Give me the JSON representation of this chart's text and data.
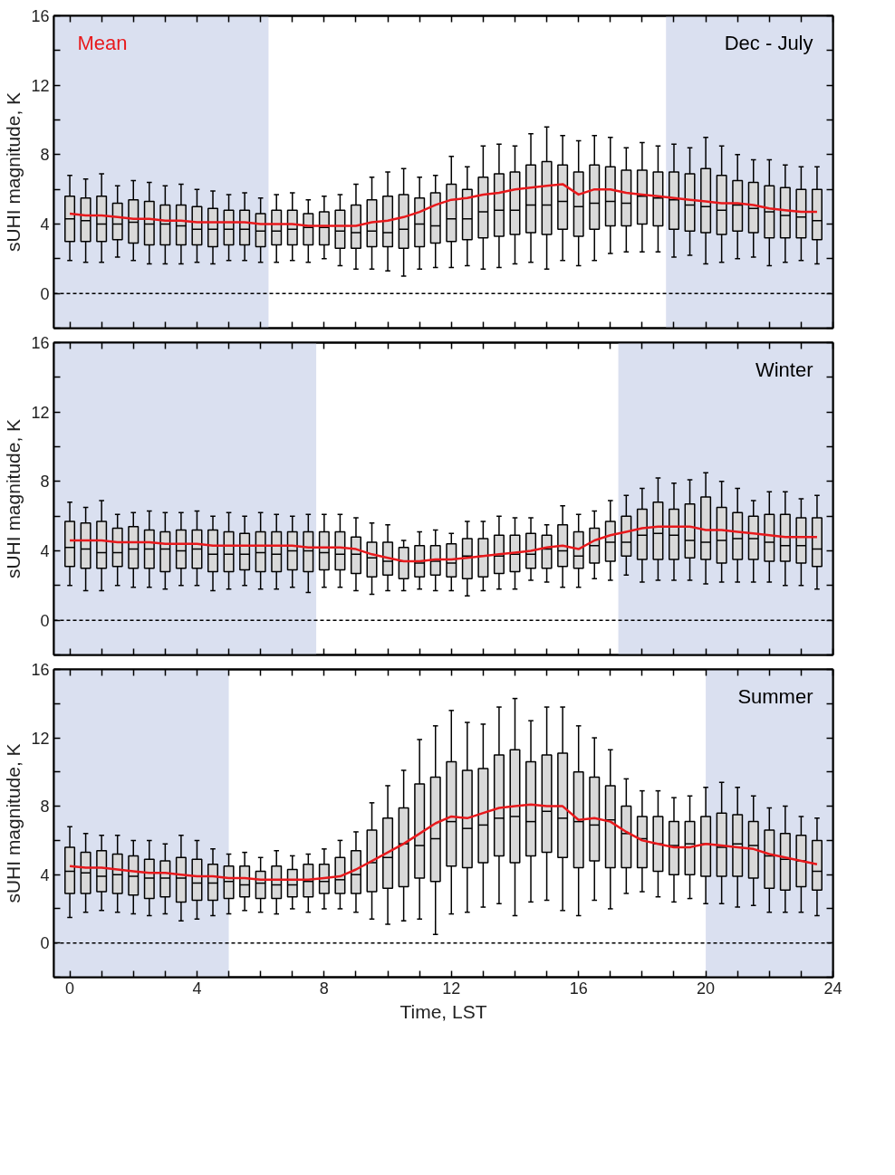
{
  "chart_data": [
    {
      "type": "box",
      "x": [
        0,
        0.5,
        1,
        1.5,
        2,
        2.5,
        3,
        3.5,
        4,
        4.5,
        5,
        5.5,
        6,
        6.5,
        7,
        7.5,
        8,
        8.5,
        9,
        9.5,
        10,
        10.5,
        11,
        11.5,
        12,
        12.5,
        13,
        13.5,
        14,
        14.5,
        15,
        15.5,
        16,
        16.5,
        17,
        17.5,
        18,
        18.5,
        19,
        19.5,
        20,
        20.5,
        21,
        21.5,
        22,
        22.5,
        23,
        23.5
      ],
      "ylabel": "sUHI magnitude, K",
      "annotations": [
        "Dec - July"
      ],
      "legend": "top left",
      "grid": false,
      "tick_labels": "y",
      "xlim": [
        -0.5,
        24
      ],
      "ylim": [
        -2,
        16
      ],
      "xticks": [
        0,
        {
          "value": 1,
          "label": null
        },
        {
          "value": 2,
          "label": null
        },
        {
          "value": 3,
          "label": null
        },
        4,
        {
          "value": 5,
          "label": null
        },
        {
          "value": 6,
          "label": null
        },
        {
          "value": 7,
          "label": null
        },
        8,
        {
          "value": 9,
          "label": null
        },
        {
          "value": 10,
          "label": null
        },
        {
          "value": 11,
          "label": null
        },
        12,
        {
          "value": 13,
          "label": null
        },
        {
          "value": 14,
          "label": null
        },
        {
          "value": 15,
          "label": null
        },
        16,
        {
          "value": 17,
          "label": null
        },
        {
          "value": 18,
          "label": null
        },
        {
          "value": 19,
          "label": null
        },
        20,
        {
          "value": 21,
          "label": null
        },
        {
          "value": 22,
          "label": null
        },
        {
          "value": 23,
          "label": null
        },
        24
      ],
      "yticks": [
        {
          "value": -2,
          "label": null
        },
        0,
        {
          "value": 2,
          "label": null
        },
        4,
        {
          "value": 6,
          "label": null
        },
        8,
        {
          "value": 10,
          "label": null
        },
        12,
        {
          "value": 14,
          "label": null
        },
        16
      ],
      "bands": [
        {
          "axis": "x",
          "from": -0.5,
          "to": 6.25,
          "color": "#dae0f0"
        },
        {
          "axis": "x",
          "from": 18.75,
          "to": 24,
          "color": "#dae0f0"
        }
      ],
      "ref_lines": [
        {
          "axis": "y",
          "value": 0,
          "color": "#000000",
          "line_style": "dashed"
        }
      ],
      "series": [
        {
          "type": "box",
          "color": "#d9d9d9",
          "boxes": [
            {
              "low": 1.9,
              "q1": 3.0,
              "median": 4.3,
              "q3": 5.6,
              "high": 6.8
            },
            {
              "low": 1.8,
              "q1": 3.0,
              "median": 4.2,
              "q3": 5.5,
              "high": 6.6
            },
            {
              "low": 1.8,
              "q1": 3.0,
              "median": 4.0,
              "q3": 5.6,
              "high": 6.9
            },
            {
              "low": 2.1,
              "q1": 3.1,
              "median": 4.0,
              "q3": 5.2,
              "high": 6.2
            },
            {
              "low": 1.9,
              "q1": 2.9,
              "median": 4.1,
              "q3": 5.4,
              "high": 6.5
            },
            {
              "low": 1.7,
              "q1": 2.8,
              "median": 4.0,
              "q3": 5.3,
              "high": 6.4
            },
            {
              "low": 1.7,
              "q1": 2.8,
              "median": 4.0,
              "q3": 5.1,
              "high": 6.2
            },
            {
              "low": 1.7,
              "q1": 2.8,
              "median": 3.9,
              "q3": 5.1,
              "high": 6.3
            },
            {
              "low": 1.8,
              "q1": 2.8,
              "median": 3.7,
              "q3": 5.0,
              "high": 6.0
            },
            {
              "low": 1.7,
              "q1": 2.7,
              "median": 3.7,
              "q3": 4.9,
              "high": 5.9
            },
            {
              "low": 1.9,
              "q1": 2.8,
              "median": 3.7,
              "q3": 4.8,
              "high": 5.7
            },
            {
              "low": 1.9,
              "q1": 2.8,
              "median": 3.7,
              "q3": 4.8,
              "high": 5.8
            },
            {
              "low": 1.8,
              "q1": 2.7,
              "median": 3.6,
              "q3": 4.6,
              "high": 5.5
            },
            {
              "low": 1.8,
              "q1": 2.8,
              "median": 3.6,
              "q3": 4.8,
              "high": 5.7
            },
            {
              "low": 1.9,
              "q1": 2.8,
              "median": 3.7,
              "q3": 4.8,
              "high": 5.8
            },
            {
              "low": 1.8,
              "q1": 2.8,
              "median": 3.8,
              "q3": 4.6,
              "high": 5.4
            },
            {
              "low": 2.0,
              "q1": 2.8,
              "median": 3.8,
              "q3": 4.7,
              "high": 5.6
            },
            {
              "low": 1.6,
              "q1": 2.6,
              "median": 3.6,
              "q3": 4.8,
              "high": 5.7
            },
            {
              "low": 1.4,
              "q1": 2.6,
              "median": 3.5,
              "q3": 5.1,
              "high": 6.3
            },
            {
              "low": 1.4,
              "q1": 2.7,
              "median": 3.6,
              "q3": 5.4,
              "high": 6.7
            },
            {
              "low": 1.3,
              "q1": 2.7,
              "median": 3.5,
              "q3": 5.6,
              "high": 7.0
            },
            {
              "low": 1.0,
              "q1": 2.6,
              "median": 3.7,
              "q3": 5.7,
              "high": 7.2
            },
            {
              "low": 1.4,
              "q1": 2.7,
              "median": 4.0,
              "q3": 5.5,
              "high": 6.7
            },
            {
              "low": 1.5,
              "q1": 2.9,
              "median": 3.9,
              "q3": 5.8,
              "high": 6.8
            },
            {
              "low": 1.5,
              "q1": 3.0,
              "median": 4.3,
              "q3": 6.3,
              "high": 7.9
            },
            {
              "low": 1.6,
              "q1": 3.1,
              "median": 4.3,
              "q3": 6.0,
              "high": 7.3
            },
            {
              "low": 1.4,
              "q1": 3.2,
              "median": 4.7,
              "q3": 6.7,
              "high": 8.5
            },
            {
              "low": 1.5,
              "q1": 3.3,
              "median": 4.8,
              "q3": 6.9,
              "high": 8.6
            },
            {
              "low": 1.7,
              "q1": 3.4,
              "median": 4.8,
              "q3": 7.0,
              "high": 8.5
            },
            {
              "low": 1.8,
              "q1": 3.5,
              "median": 5.1,
              "q3": 7.4,
              "high": 9.2
            },
            {
              "low": 1.4,
              "q1": 3.4,
              "median": 5.1,
              "q3": 7.6,
              "high": 9.6
            },
            {
              "low": 1.9,
              "q1": 3.7,
              "median": 5.3,
              "q3": 7.4,
              "high": 9.1
            },
            {
              "low": 1.6,
              "q1": 3.3,
              "median": 5.0,
              "q3": 7.0,
              "high": 8.8
            },
            {
              "low": 1.9,
              "q1": 3.7,
              "median": 5.2,
              "q3": 7.4,
              "high": 9.1
            },
            {
              "low": 2.3,
              "q1": 3.9,
              "median": 5.3,
              "q3": 7.3,
              "high": 9.0
            },
            {
              "low": 2.4,
              "q1": 3.9,
              "median": 5.2,
              "q3": 7.1,
              "high": 8.4
            },
            {
              "low": 2.4,
              "q1": 4.0,
              "median": 5.6,
              "q3": 7.1,
              "high": 8.7
            },
            {
              "low": 2.4,
              "q1": 3.9,
              "median": 5.5,
              "q3": 7.0,
              "high": 8.5
            },
            {
              "low": 2.1,
              "q1": 3.7,
              "median": 5.4,
              "q3": 7.0,
              "high": 8.6
            },
            {
              "low": 2.2,
              "q1": 3.6,
              "median": 5.1,
              "q3": 6.9,
              "high": 8.4
            },
            {
              "low": 1.7,
              "q1": 3.5,
              "median": 5.0,
              "q3": 7.2,
              "high": 9.0
            },
            {
              "low": 1.8,
              "q1": 3.4,
              "median": 4.8,
              "q3": 6.8,
              "high": 8.5
            },
            {
              "low": 2.0,
              "q1": 3.6,
              "median": 5.1,
              "q3": 6.5,
              "high": 8.0
            },
            {
              "low": 2.1,
              "q1": 3.5,
              "median": 4.9,
              "q3": 6.4,
              "high": 7.7
            },
            {
              "low": 1.6,
              "q1": 3.2,
              "median": 4.7,
              "q3": 6.2,
              "high": 7.7
            },
            {
              "low": 1.8,
              "q1": 3.2,
              "median": 4.5,
              "q3": 6.1,
              "high": 7.4
            },
            {
              "low": 1.9,
              "q1": 3.2,
              "median": 4.4,
              "q3": 6.0,
              "high": 7.3
            },
            {
              "low": 1.7,
              "q1": 3.1,
              "median": 4.2,
              "q3": 6.0,
              "high": 7.3
            }
          ]
        },
        {
          "type": "line",
          "name": "Mean",
          "color": "#e8191c",
          "values": [
            4.6,
            4.5,
            4.5,
            4.4,
            4.3,
            4.3,
            4.2,
            4.2,
            4.1,
            4.1,
            4.1,
            4.1,
            4.0,
            4.0,
            4.0,
            3.9,
            3.9,
            3.9,
            3.9,
            4.1,
            4.2,
            4.4,
            4.7,
            5.1,
            5.4,
            5.5,
            5.7,
            5.8,
            6.0,
            6.1,
            6.2,
            6.3,
            5.7,
            6.0,
            6.0,
            5.8,
            5.7,
            5.6,
            5.5,
            5.4,
            5.3,
            5.2,
            5.2,
            5.1,
            4.9,
            4.8,
            4.7,
            4.7
          ]
        }
      ]
    },
    {
      "type": "box",
      "x": [
        0,
        0.5,
        1,
        1.5,
        2,
        2.5,
        3,
        3.5,
        4,
        4.5,
        5,
        5.5,
        6,
        6.5,
        7,
        7.5,
        8,
        8.5,
        9,
        9.5,
        10,
        10.5,
        11,
        11.5,
        12,
        12.5,
        13,
        13.5,
        14,
        14.5,
        15,
        15.5,
        16,
        16.5,
        17,
        17.5,
        18,
        18.5,
        19,
        19.5,
        20,
        20.5,
        21,
        21.5,
        22,
        22.5,
        23,
        23.5
      ],
      "ylabel": "sUHI magnitude, K",
      "annotations": [
        "Winter"
      ],
      "grid": false,
      "tick_labels": "y",
      "xlim": [
        -0.5,
        24
      ],
      "ylim": [
        -2,
        16
      ],
      "xticks": [
        0,
        {
          "value": 1,
          "label": null
        },
        {
          "value": 2,
          "label": null
        },
        {
          "value": 3,
          "label": null
        },
        4,
        {
          "value": 5,
          "label": null
        },
        {
          "value": 6,
          "label": null
        },
        {
          "value": 7,
          "label": null
        },
        8,
        {
          "value": 9,
          "label": null
        },
        {
          "value": 10,
          "label": null
        },
        {
          "value": 11,
          "label": null
        },
        12,
        {
          "value": 13,
          "label": null
        },
        {
          "value": 14,
          "label": null
        },
        {
          "value": 15,
          "label": null
        },
        16,
        {
          "value": 17,
          "label": null
        },
        {
          "value": 18,
          "label": null
        },
        {
          "value": 19,
          "label": null
        },
        20,
        {
          "value": 21,
          "label": null
        },
        {
          "value": 22,
          "label": null
        },
        {
          "value": 23,
          "label": null
        },
        24
      ],
      "yticks": [
        {
          "value": -2,
          "label": null
        },
        0,
        {
          "value": 2,
          "label": null
        },
        4,
        {
          "value": 6,
          "label": null
        },
        8,
        {
          "value": 10,
          "label": null
        },
        12,
        {
          "value": 14,
          "label": null
        },
        16
      ],
      "bands": [
        {
          "axis": "x",
          "from": -0.5,
          "to": 7.75,
          "color": "#dae0f0"
        },
        {
          "axis": "x",
          "from": 17.25,
          "to": 24,
          "color": "#dae0f0"
        }
      ],
      "ref_lines": [
        {
          "axis": "y",
          "value": 0,
          "color": "#000000",
          "line_style": "dashed"
        }
      ],
      "series": [
        {
          "type": "box",
          "color": "#d9d9d9",
          "boxes": [
            {
              "low": 2.0,
              "q1": 3.1,
              "median": 4.2,
              "q3": 5.7,
              "high": 6.8
            },
            {
              "low": 1.7,
              "q1": 3.0,
              "median": 4.1,
              "q3": 5.6,
              "high": 6.5
            },
            {
              "low": 1.7,
              "q1": 3.0,
              "median": 3.9,
              "q3": 5.7,
              "high": 6.9
            },
            {
              "low": 2.0,
              "q1": 3.1,
              "median": 3.9,
              "q3": 5.3,
              "high": 6.1
            },
            {
              "low": 1.9,
              "q1": 3.0,
              "median": 4.1,
              "q3": 5.4,
              "high": 6.2
            },
            {
              "low": 1.9,
              "q1": 3.0,
              "median": 4.1,
              "q3": 5.2,
              "high": 6.3
            },
            {
              "low": 1.8,
              "q1": 2.8,
              "median": 4.1,
              "q3": 5.1,
              "high": 6.2
            },
            {
              "low": 2.0,
              "q1": 3.0,
              "median": 4.0,
              "q3": 5.2,
              "high": 6.2
            },
            {
              "low": 2.0,
              "q1": 3.0,
              "median": 4.1,
              "q3": 5.2,
              "high": 6.3
            },
            {
              "low": 1.7,
              "q1": 2.8,
              "median": 3.8,
              "q3": 5.2,
              "high": 6.0
            },
            {
              "low": 1.8,
              "q1": 2.8,
              "median": 3.8,
              "q3": 5.1,
              "high": 6.2
            },
            {
              "low": 2.0,
              "q1": 2.9,
              "median": 3.8,
              "q3": 5.0,
              "high": 6.0
            },
            {
              "low": 1.8,
              "q1": 2.8,
              "median": 3.9,
              "q3": 5.1,
              "high": 6.2
            },
            {
              "low": 1.8,
              "q1": 2.8,
              "median": 3.8,
              "q3": 5.1,
              "high": 6.1
            },
            {
              "low": 1.9,
              "q1": 2.9,
              "median": 4.0,
              "q3": 5.1,
              "high": 6.0
            },
            {
              "low": 1.6,
              "q1": 2.8,
              "median": 4.0,
              "q3": 5.1,
              "high": 6.1
            },
            {
              "low": 1.9,
              "q1": 2.9,
              "median": 3.9,
              "q3": 5.1,
              "high": 6.1
            },
            {
              "low": 1.9,
              "q1": 2.9,
              "median": 3.8,
              "q3": 5.1,
              "high": 6.1
            },
            {
              "low": 1.7,
              "q1": 2.7,
              "median": 3.8,
              "q3": 4.8,
              "high": 5.9
            },
            {
              "low": 1.5,
              "q1": 2.5,
              "median": 3.6,
              "q3": 4.5,
              "high": 5.6
            },
            {
              "low": 1.7,
              "q1": 2.6,
              "median": 3.4,
              "q3": 4.5,
              "high": 5.5
            },
            {
              "low": 1.7,
              "q1": 2.4,
              "median": 3.4,
              "q3": 4.2,
              "high": 4.6
            },
            {
              "low": 1.8,
              "q1": 2.5,
              "median": 3.3,
              "q3": 4.3,
              "high": 5.1
            },
            {
              "low": 1.7,
              "q1": 2.6,
              "median": 3.4,
              "q3": 4.3,
              "high": 5.2
            },
            {
              "low": 1.7,
              "q1": 2.5,
              "median": 3.3,
              "q3": 4.4,
              "high": 5.0
            },
            {
              "low": 1.4,
              "q1": 2.4,
              "median": 3.7,
              "q3": 4.7,
              "high": 5.7
            },
            {
              "low": 1.7,
              "q1": 2.5,
              "median": 3.7,
              "q3": 4.7,
              "high": 5.7
            },
            {
              "low": 1.8,
              "q1": 2.7,
              "median": 3.7,
              "q3": 4.9,
              "high": 6.0
            },
            {
              "low": 1.8,
              "q1": 2.8,
              "median": 3.8,
              "q3": 4.9,
              "high": 5.9
            },
            {
              "low": 2.3,
              "q1": 3.0,
              "median": 3.8,
              "q3": 5.0,
              "high": 5.9
            },
            {
              "low": 2.2,
              "q1": 3.0,
              "median": 4.1,
              "q3": 4.9,
              "high": 5.5
            },
            {
              "low": 1.9,
              "q1": 3.1,
              "median": 4.0,
              "q3": 5.5,
              "high": 6.6
            },
            {
              "low": 1.9,
              "q1": 3.0,
              "median": 3.7,
              "q3": 5.1,
              "high": 6.1
            },
            {
              "low": 2.4,
              "q1": 3.3,
              "median": 4.3,
              "q3": 5.3,
              "high": 6.3
            },
            {
              "low": 2.3,
              "q1": 3.4,
              "median": 4.5,
              "q3": 5.7,
              "high": 6.9
            },
            {
              "low": 2.6,
              "q1": 3.7,
              "median": 4.5,
              "q3": 6.0,
              "high": 7.2
            },
            {
              "low": 2.2,
              "q1": 3.5,
              "median": 4.9,
              "q3": 6.4,
              "high": 7.6
            },
            {
              "low": 2.3,
              "q1": 3.5,
              "median": 5.0,
              "q3": 6.8,
              "high": 8.2
            },
            {
              "low": 2.3,
              "q1": 3.5,
              "median": 4.9,
              "q3": 6.4,
              "high": 7.9
            },
            {
              "low": 2.3,
              "q1": 3.6,
              "median": 4.6,
              "q3": 6.7,
              "high": 8.1
            },
            {
              "low": 2.1,
              "q1": 3.5,
              "median": 4.5,
              "q3": 7.1,
              "high": 8.5
            },
            {
              "low": 2.2,
              "q1": 3.3,
              "median": 4.6,
              "q3": 6.5,
              "high": 8.0
            },
            {
              "low": 2.2,
              "q1": 3.5,
              "median": 4.7,
              "q3": 6.2,
              "high": 7.6
            },
            {
              "low": 2.2,
              "q1": 3.5,
              "median": 4.7,
              "q3": 6.0,
              "high": 6.9
            },
            {
              "low": 2.2,
              "q1": 3.4,
              "median": 4.5,
              "q3": 6.1,
              "high": 7.4
            },
            {
              "low": 2.0,
              "q1": 3.4,
              "median": 4.3,
              "q3": 6.1,
              "high": 7.4
            },
            {
              "low": 2.0,
              "q1": 3.3,
              "median": 4.3,
              "q3": 5.9,
              "high": 7.0
            },
            {
              "low": 1.8,
              "q1": 3.1,
              "median": 4.1,
              "q3": 5.9,
              "high": 7.2
            }
          ]
        },
        {
          "type": "line",
          "color": "#e8191c",
          "values": [
            4.6,
            4.6,
            4.6,
            4.5,
            4.5,
            4.5,
            4.4,
            4.4,
            4.4,
            4.3,
            4.3,
            4.3,
            4.3,
            4.3,
            4.3,
            4.2,
            4.2,
            4.2,
            4.1,
            3.8,
            3.6,
            3.4,
            3.4,
            3.5,
            3.5,
            3.6,
            3.7,
            3.8,
            3.9,
            4.0,
            4.2,
            4.3,
            4.1,
            4.6,
            4.9,
            5.1,
            5.3,
            5.4,
            5.4,
            5.4,
            5.2,
            5.2,
            5.1,
            5.0,
            4.9,
            4.8,
            4.8,
            4.8
          ]
        }
      ]
    },
    {
      "type": "box",
      "x": [
        0,
        0.5,
        1,
        1.5,
        2,
        2.5,
        3,
        3.5,
        4,
        4.5,
        5,
        5.5,
        6,
        6.5,
        7,
        7.5,
        8,
        8.5,
        9,
        9.5,
        10,
        10.5,
        11,
        11.5,
        12,
        12.5,
        13,
        13.5,
        14,
        14.5,
        15,
        15.5,
        16,
        16.5,
        17,
        17.5,
        18,
        18.5,
        19,
        19.5,
        20,
        20.5,
        21,
        21.5,
        22,
        22.5,
        23,
        23.5
      ],
      "xlabel": "Time, LST",
      "ylabel": "sUHI magnitude, K",
      "annotations": [
        "Summer"
      ],
      "grid": false,
      "xlim": [
        -0.5,
        24
      ],
      "ylim": [
        -2,
        16
      ],
      "xticks": [
        0,
        {
          "value": 1,
          "label": null
        },
        {
          "value": 2,
          "label": null
        },
        {
          "value": 3,
          "label": null
        },
        4,
        {
          "value": 5,
          "label": null
        },
        {
          "value": 6,
          "label": null
        },
        {
          "value": 7,
          "label": null
        },
        8,
        {
          "value": 9,
          "label": null
        },
        {
          "value": 10,
          "label": null
        },
        {
          "value": 11,
          "label": null
        },
        12,
        {
          "value": 13,
          "label": null
        },
        {
          "value": 14,
          "label": null
        },
        {
          "value": 15,
          "label": null
        },
        16,
        {
          "value": 17,
          "label": null
        },
        {
          "value": 18,
          "label": null
        },
        {
          "value": 19,
          "label": null
        },
        20,
        {
          "value": 21,
          "label": null
        },
        {
          "value": 22,
          "label": null
        },
        {
          "value": 23,
          "label": null
        },
        24
      ],
      "yticks": [
        {
          "value": -2,
          "label": null
        },
        0,
        {
          "value": 2,
          "label": null
        },
        4,
        {
          "value": 6,
          "label": null
        },
        8,
        {
          "value": 10,
          "label": null
        },
        12,
        {
          "value": 14,
          "label": null
        },
        16
      ],
      "bands": [
        {
          "axis": "x",
          "from": -0.5,
          "to": 5,
          "color": "#dae0f0"
        },
        {
          "axis": "x",
          "from": 20,
          "to": 24,
          "color": "#dae0f0"
        }
      ],
      "ref_lines": [
        {
          "axis": "y",
          "value": 0,
          "color": "#000000",
          "line_style": "dashed"
        }
      ],
      "series": [
        {
          "type": "box",
          "color": "#d9d9d9",
          "boxes": [
            {
              "low": 1.5,
              "q1": 2.9,
              "median": 4.2,
              "q3": 5.6,
              "high": 6.8
            },
            {
              "low": 1.8,
              "q1": 2.9,
              "median": 4.1,
              "q3": 5.3,
              "high": 6.4
            },
            {
              "low": 1.9,
              "q1": 3.0,
              "median": 3.9,
              "q3": 5.4,
              "high": 6.3
            },
            {
              "low": 1.8,
              "q1": 2.9,
              "median": 4.0,
              "q3": 5.2,
              "high": 6.3
            },
            {
              "low": 1.7,
              "q1": 2.8,
              "median": 3.9,
              "q3": 5.1,
              "high": 6.0
            },
            {
              "low": 1.6,
              "q1": 2.6,
              "median": 3.8,
              "q3": 4.9,
              "high": 6.0
            },
            {
              "low": 1.7,
              "q1": 2.7,
              "median": 3.8,
              "q3": 4.8,
              "high": 5.8
            },
            {
              "low": 1.3,
              "q1": 2.4,
              "median": 3.8,
              "q3": 5.0,
              "high": 6.3
            },
            {
              "low": 1.4,
              "q1": 2.5,
              "median": 3.5,
              "q3": 4.9,
              "high": 6.0
            },
            {
              "low": 1.6,
              "q1": 2.5,
              "median": 3.5,
              "q3": 4.6,
              "high": 5.5
            },
            {
              "low": 1.7,
              "q1": 2.6,
              "median": 3.6,
              "q3": 4.5,
              "high": 5.2
            },
            {
              "low": 1.9,
              "q1": 2.7,
              "median": 3.4,
              "q3": 4.5,
              "high": 5.3
            },
            {
              "low": 1.8,
              "q1": 2.6,
              "median": 3.5,
              "q3": 4.2,
              "high": 5.0
            },
            {
              "low": 1.7,
              "q1": 2.6,
              "median": 3.4,
              "q3": 4.5,
              "high": 5.4
            },
            {
              "low": 2.0,
              "q1": 2.7,
              "median": 3.4,
              "q3": 4.3,
              "high": 5.1
            },
            {
              "low": 1.8,
              "q1": 2.7,
              "median": 3.6,
              "q3": 4.6,
              "high": 5.2
            },
            {
              "low": 2.0,
              "q1": 2.9,
              "median": 3.6,
              "q3": 4.6,
              "high": 5.5
            },
            {
              "low": 2.0,
              "q1": 2.9,
              "median": 3.7,
              "q3": 5.0,
              "high": 6.0
            },
            {
              "low": 1.8,
              "q1": 2.9,
              "median": 4.0,
              "q3": 5.4,
              "high": 6.5
            },
            {
              "low": 1.4,
              "q1": 3.0,
              "median": 4.7,
              "q3": 6.6,
              "high": 8.2
            },
            {
              "low": 1.1,
              "q1": 3.2,
              "median": 5.0,
              "q3": 7.3,
              "high": 9.2
            },
            {
              "low": 1.3,
              "q1": 3.3,
              "median": 5.8,
              "q3": 7.9,
              "high": 10.1
            },
            {
              "low": 1.4,
              "q1": 3.8,
              "median": 5.7,
              "q3": 9.3,
              "high": 11.9
            },
            {
              "low": 0.5,
              "q1": 3.6,
              "median": 6.1,
              "q3": 9.7,
              "high": 12.7
            },
            {
              "low": 1.7,
              "q1": 4.5,
              "median": 7.1,
              "q3": 10.6,
              "high": 13.6
            },
            {
              "low": 1.8,
              "q1": 4.4,
              "median": 6.7,
              "q3": 10.1,
              "high": 12.9
            },
            {
              "low": 2.1,
              "q1": 4.7,
              "median": 6.9,
              "q3": 10.2,
              "high": 12.8
            },
            {
              "low": 2.3,
              "q1": 5.1,
              "median": 7.3,
              "q3": 11.0,
              "high": 13.8
            },
            {
              "low": 1.6,
              "q1": 4.7,
              "median": 7.4,
              "q3": 11.3,
              "high": 14.3
            },
            {
              "low": 2.4,
              "q1": 5.1,
              "median": 7.1,
              "q3": 10.6,
              "high": 13.0
            },
            {
              "low": 2.5,
              "q1": 5.3,
              "median": 7.7,
              "q3": 11.0,
              "high": 13.8
            },
            {
              "low": 1.9,
              "q1": 5.0,
              "median": 7.3,
              "q3": 11.1,
              "high": 13.8
            },
            {
              "low": 1.6,
              "q1": 4.4,
              "median": 7.1,
              "q3": 10.0,
              "high": 12.7
            },
            {
              "low": 2.5,
              "q1": 4.8,
              "median": 6.9,
              "q3": 9.7,
              "high": 12.0
            },
            {
              "low": 2.0,
              "q1": 4.4,
              "median": 7.2,
              "q3": 9.2,
              "high": 11.3
            },
            {
              "low": 2.9,
              "q1": 4.4,
              "median": 6.4,
              "q3": 8.0,
              "high": 9.6
            },
            {
              "low": 3.0,
              "q1": 4.4,
              "median": 6.1,
              "q3": 7.4,
              "high": 8.9
            },
            {
              "low": 2.7,
              "q1": 4.2,
              "median": 5.8,
              "q3": 7.4,
              "high": 8.9
            },
            {
              "low": 2.4,
              "q1": 4.0,
              "median": 5.7,
              "q3": 7.1,
              "high": 8.5
            },
            {
              "low": 2.6,
              "q1": 4.0,
              "median": 5.8,
              "q3": 7.1,
              "high": 8.6
            },
            {
              "low": 2.3,
              "q1": 3.9,
              "median": 5.8,
              "q3": 7.4,
              "high": 9.1
            },
            {
              "low": 2.3,
              "q1": 3.9,
              "median": 5.6,
              "q3": 7.6,
              "high": 9.4
            },
            {
              "low": 2.1,
              "q1": 3.9,
              "median": 5.8,
              "q3": 7.5,
              "high": 9.1
            },
            {
              "low": 2.2,
              "q1": 3.8,
              "median": 5.7,
              "q3": 7.1,
              "high": 8.6
            },
            {
              "low": 1.8,
              "q1": 3.2,
              "median": 5.1,
              "q3": 6.6,
              "high": 7.9
            },
            {
              "low": 1.8,
              "q1": 3.1,
              "median": 4.9,
              "q3": 6.4,
              "high": 8.0
            },
            {
              "low": 1.8,
              "q1": 3.3,
              "median": 4.8,
              "q3": 6.3,
              "high": 7.4
            },
            {
              "low": 1.6,
              "q1": 3.1,
              "median": 4.2,
              "q3": 6.0,
              "high": 7.3
            }
          ]
        },
        {
          "type": "line",
          "color": "#e8191c",
          "values": [
            4.5,
            4.4,
            4.4,
            4.3,
            4.2,
            4.1,
            4.1,
            4.0,
            3.9,
            3.9,
            3.8,
            3.8,
            3.7,
            3.7,
            3.7,
            3.7,
            3.8,
            3.9,
            4.3,
            4.8,
            5.3,
            5.8,
            6.4,
            7.0,
            7.4,
            7.3,
            7.6,
            7.9,
            8.0,
            8.1,
            8.0,
            8.0,
            7.2,
            7.3,
            7.1,
            6.5,
            6.0,
            5.8,
            5.6,
            5.6,
            5.8,
            5.7,
            5.6,
            5.5,
            5.2,
            5.0,
            4.8,
            4.6
          ]
        }
      ]
    }
  ]
}
